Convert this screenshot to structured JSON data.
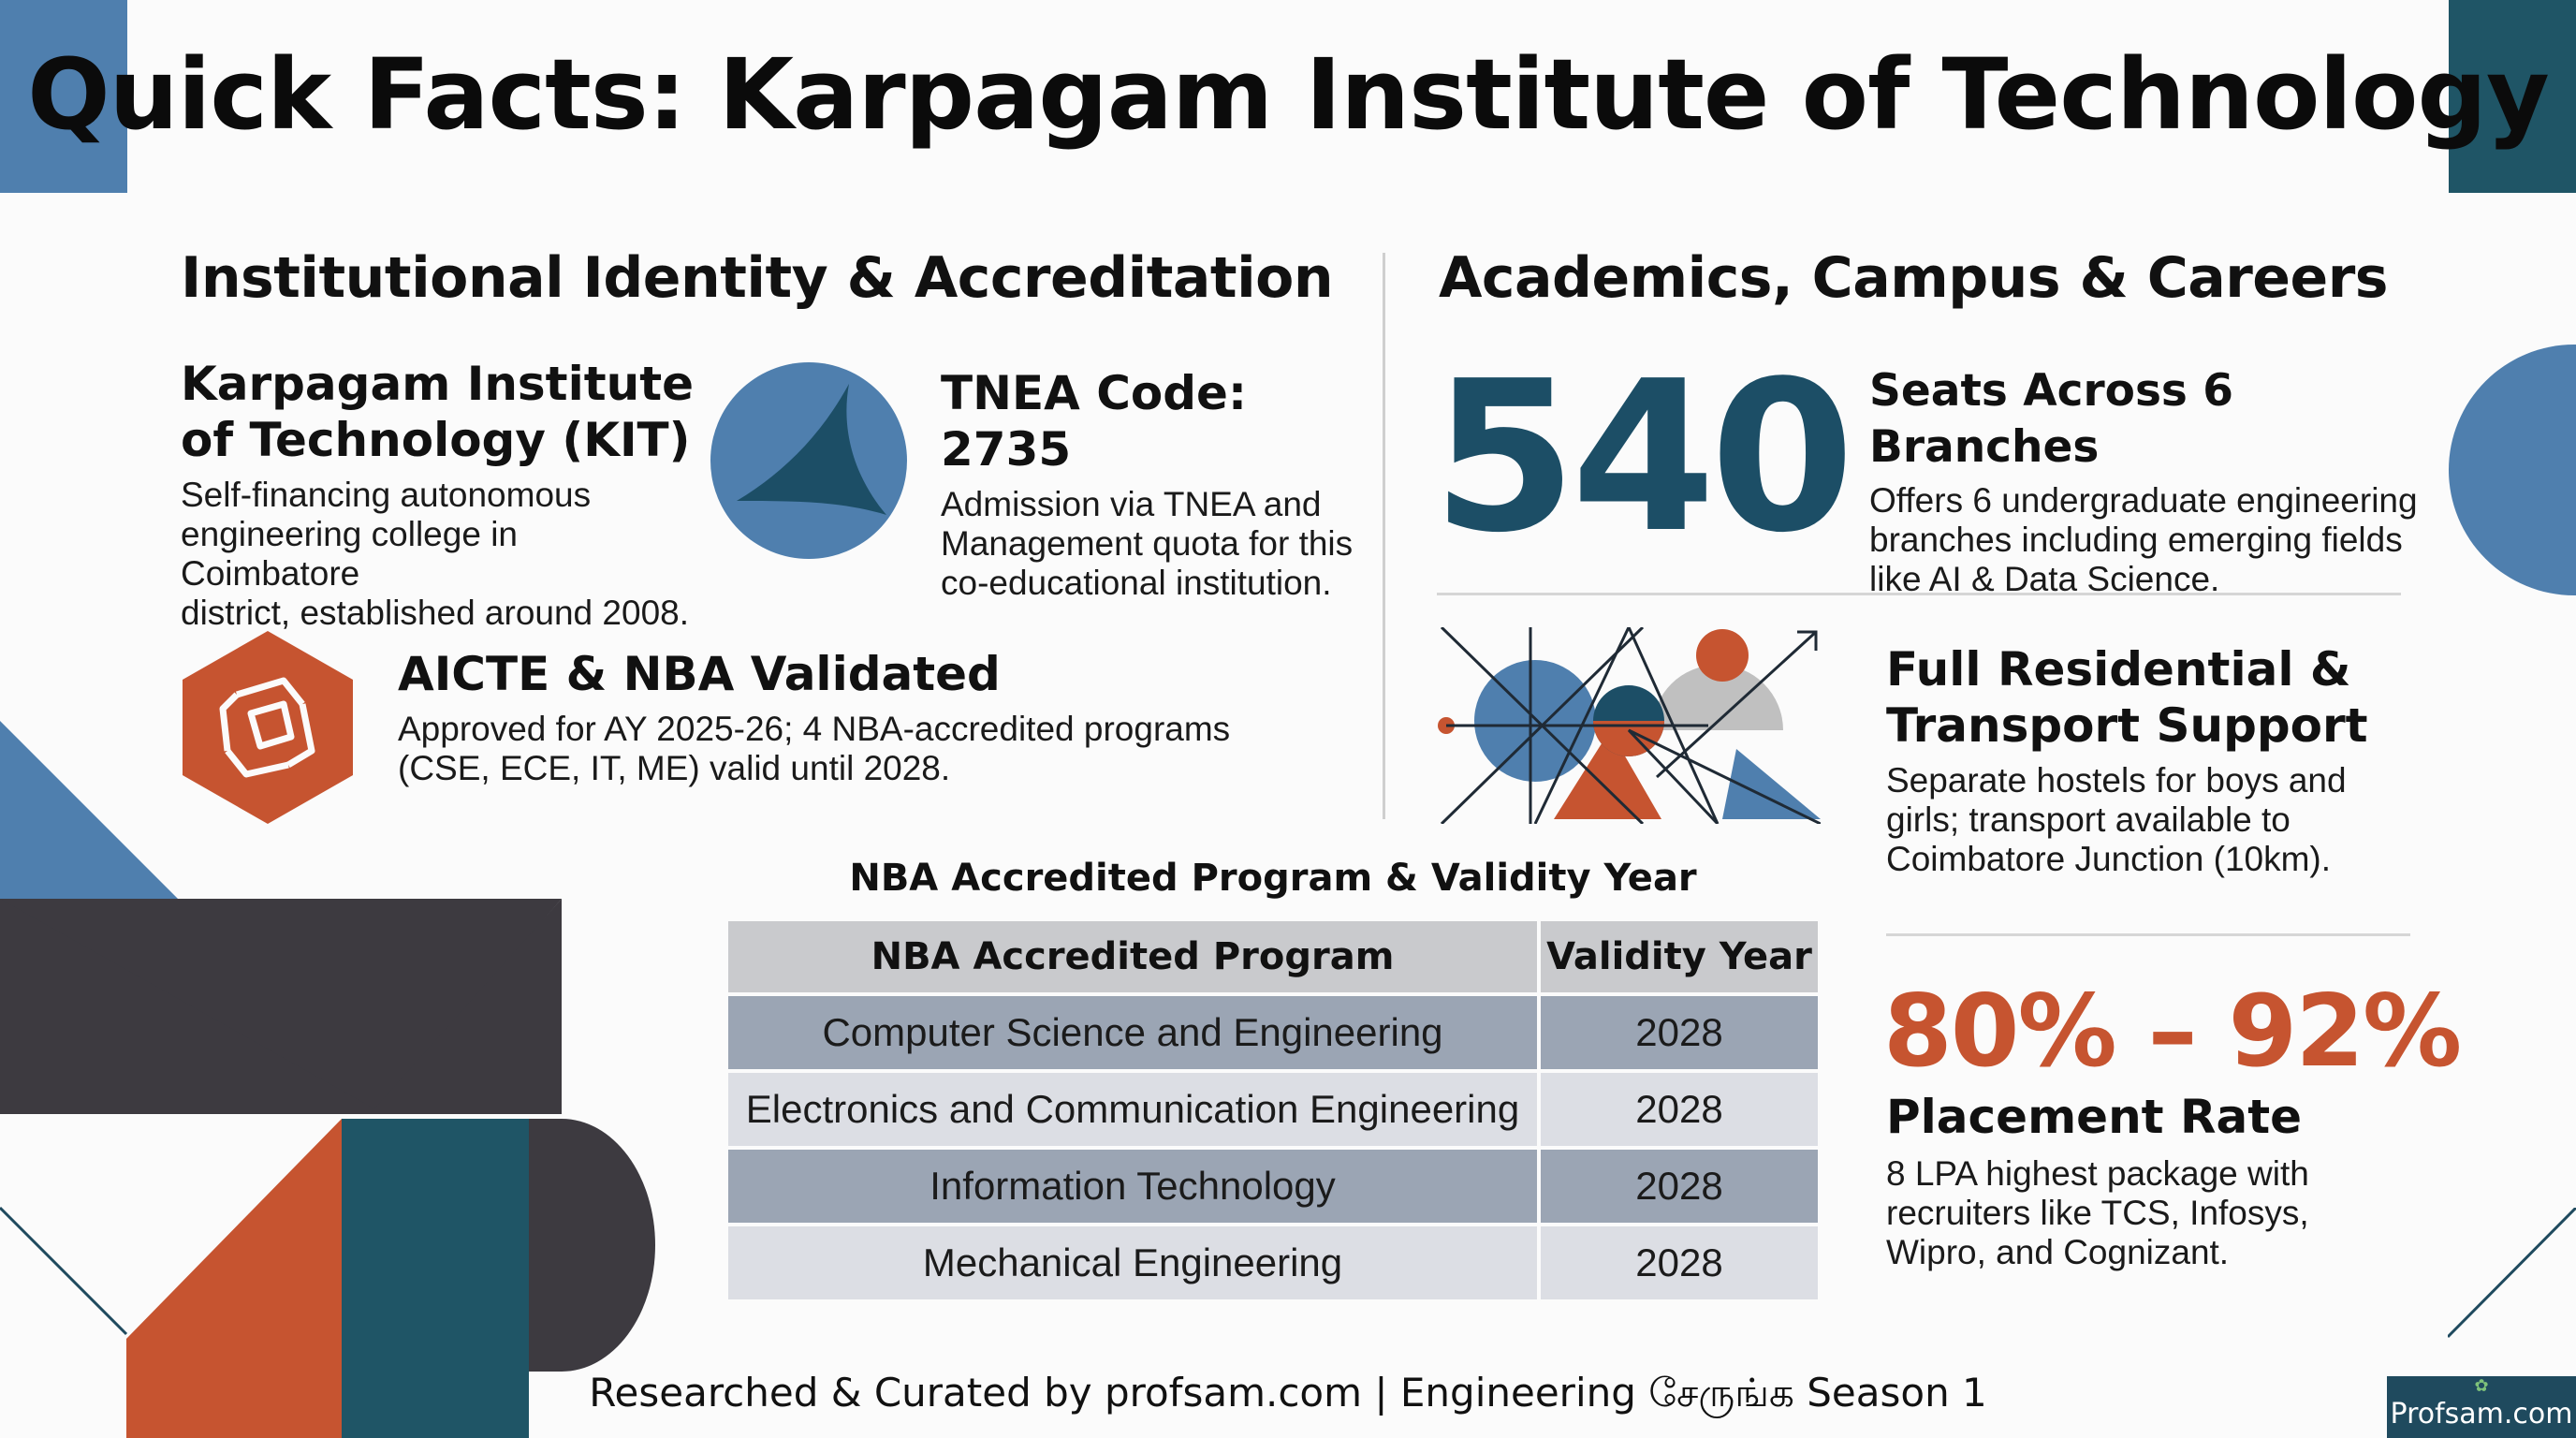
{
  "title": "Quick Facts: Karpagam Institute of Technology",
  "left": {
    "heading": "Institutional Identity & Accreditation",
    "identity": {
      "name_line1": "Karpagam Institute",
      "name_line2": "of Technology (KIT)",
      "desc_line1": "Self-financing autonomous",
      "desc_line2": "engineering college in Coimbatore",
      "desc_line3": "district, established around 2008."
    },
    "tnea": {
      "title": "TNEA Code: 2735",
      "desc_line1": "Admission via TNEA and",
      "desc_line2": "Management quota for this",
      "desc_line3": "co-educational institution."
    },
    "aicte": {
      "title": "AICTE & NBA Validated",
      "desc_line1": "Approved for AY 2025-26; 4 NBA-accredited programs",
      "desc_line2": "(CSE, ECE, IT, ME) valid until 2028."
    }
  },
  "table": {
    "caption": "NBA Accredited Program & Validity Year",
    "headers": [
      "NBA Accredited Program",
      "Validity Year"
    ],
    "rows": [
      [
        "Computer Science and Engineering",
        "2028"
      ],
      [
        "Electronics and Communication Engineering",
        "2028"
      ],
      [
        "Information Technology",
        "2028"
      ],
      [
        "Mechanical Engineering",
        "2028"
      ]
    ]
  },
  "right": {
    "heading": "Academics, Campus & Careers",
    "seats": {
      "number": "540",
      "title": "Seats Across 6 Branches",
      "desc_line1": "Offers 6 undergraduate engineering",
      "desc_line2": "branches including emerging fields",
      "desc_line3": "like AI & Data Science."
    },
    "residential": {
      "title_line1": "Full Residential &",
      "title_line2": "Transport Support",
      "desc_line1": "Separate hostels for boys and",
      "desc_line2": "girls; transport available to",
      "desc_line3": "Coimbatore Junction (10km)."
    },
    "placement": {
      "rate": "80% – 92%",
      "title": "Placement Rate",
      "desc_line1": "8 LPA highest package with",
      "desc_line2": "recruiters like TCS, Infosys,",
      "desc_line3": "Wipro, and Cognizant."
    }
  },
  "footer": "Researched & Curated by profsam.com | Engineering சேருங்க Season 1",
  "brand": "Profsam.com",
  "colors": {
    "teal": "#1c4e66",
    "blue": "#4f7fae",
    "orange": "#c65430",
    "charcoal": "#3d3a40"
  }
}
